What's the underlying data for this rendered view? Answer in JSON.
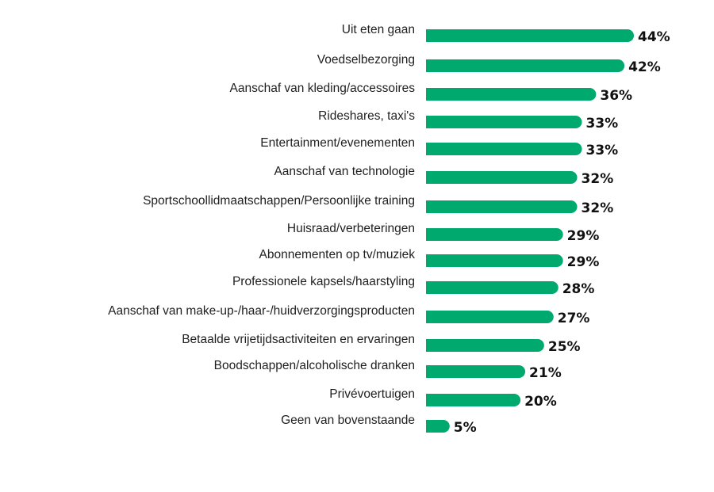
{
  "chart_data": {
    "type": "bar",
    "orientation": "horizontal",
    "categories": [
      "Uit eten gaan",
      "Voedselbezorging",
      "Aanschaf van kleding/accessoires",
      "Rideshares, taxi's",
      "Entertainment/evenementen",
      "Aanschaf van technologie",
      "Sportschoollidmaatschappen/Persoonlijke training",
      "Huisraad/verbeteringen",
      "Abonnementen op tv/muziek",
      "Professionele kapsels/haarstyling",
      "Aanschaf van make-up-/haar-/huidverzorgingsproducten",
      "Betaalde vrijetijdsactiviteiten en ervaringen",
      "Boodschappen/alcoholische dranken",
      "Privévoertuigen",
      "Geen van bovenstaande"
    ],
    "values": [
      44,
      42,
      36,
      33,
      33,
      32,
      32,
      29,
      29,
      28,
      27,
      25,
      21,
      20,
      5
    ],
    "value_labels": [
      "44%",
      "42%",
      "36%",
      "33%",
      "33%",
      "32%",
      "32%",
      "29%",
      "29%",
      "28%",
      "27%",
      "25%",
      "21%",
      "20%",
      "5%"
    ],
    "bar_color": "#00a96e",
    "grid": false,
    "legend": "none"
  }
}
